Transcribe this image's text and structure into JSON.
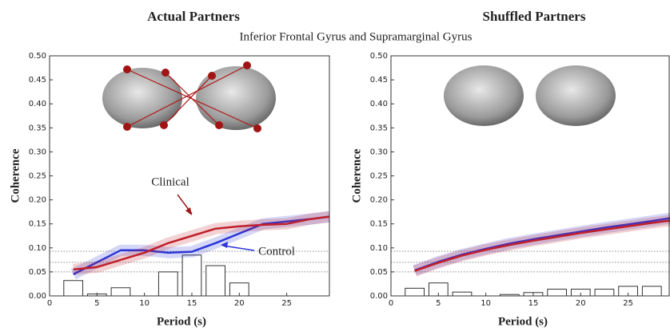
{
  "subtitle": "Inferior Frontal Gyrus and Supramarginal Gyrus",
  "chart_data": [
    {
      "type": "line",
      "title": "Actual Partners",
      "xlabel": "Period (s)",
      "ylabel": "Coherence",
      "x": [
        2.5,
        5,
        7.5,
        10,
        12.5,
        15,
        17.5,
        20,
        22.5,
        25,
        27.5,
        29.5
      ],
      "series": [
        {
          "name": "Control",
          "color": "#2b35d8",
          "values": [
            0.045,
            0.07,
            0.095,
            0.095,
            0.09,
            0.092,
            0.11,
            0.13,
            0.15,
            0.155,
            0.16,
            0.165
          ]
        },
        {
          "name": "Clinical",
          "color": "#c0202a",
          "values": [
            0.055,
            0.06,
            0.075,
            0.09,
            0.11,
            0.125,
            0.14,
            0.145,
            0.148,
            0.15,
            0.16,
            0.165
          ]
        }
      ],
      "bars": {
        "x": [
          2.5,
          5,
          7.5,
          12.5,
          15,
          17.5,
          20
        ],
        "values": [
          0.032,
          0.004,
          0.017,
          0.05,
          0.085,
          0.063,
          0.027
        ]
      },
      "reference_lines": [
        0.093,
        0.07,
        0.05
      ],
      "xlim": [
        0,
        29.5
      ],
      "ylim": [
        0,
        0.5
      ],
      "xticks": [
        0,
        5,
        10,
        15,
        20,
        25
      ],
      "yticks": [
        {
          "value": 0,
          "label": "0.00"
        },
        {
          "value": 0.05,
          "label": "0.05"
        },
        {
          "value": 0.1,
          "label": "0.10"
        },
        {
          "value": 0.15,
          "label": "0.15"
        },
        {
          "value": 0.2,
          "label": "0.20"
        },
        {
          "value": 0.25,
          "label": "0.25"
        },
        {
          "value": 0.3,
          "label": "0.30"
        },
        {
          "value": 0.35,
          "label": "0.35"
        },
        {
          "value": 0.4,
          "label": "0.40"
        },
        {
          "value": 0.45,
          "label": "0.45"
        },
        {
          "value": 0.5,
          "label": "0.50"
        }
      ]
    },
    {
      "type": "line",
      "title": "Shuffled Partners",
      "xlabel": "Period (s)",
      "ylabel": "Coherence",
      "x": [
        2.5,
        5,
        7.5,
        10,
        12.5,
        15,
        17.5,
        20,
        22.5,
        25,
        27.5,
        29.5
      ],
      "series": [
        {
          "color": "#2b35d8",
          "values": [
            0.053,
            0.071,
            0.086,
            0.098,
            0.109,
            0.118,
            0.126,
            0.134,
            0.142,
            0.149,
            0.156,
            0.162
          ]
        },
        {
          "color": "#c0202a",
          "values": [
            0.052,
            0.069,
            0.084,
            0.096,
            0.106,
            0.115,
            0.123,
            0.131,
            0.138,
            0.145,
            0.152,
            0.157
          ]
        }
      ],
      "bars": {
        "x": [
          2.5,
          5,
          7.5,
          12.5,
          15,
          17.5,
          20,
          22.5,
          25,
          27.5
        ],
        "values": [
          0.016,
          0.027,
          0.008,
          0.003,
          0.007,
          0.014,
          0.014,
          0.014,
          0.02,
          0.02
        ]
      },
      "reference_lines": [
        0.093,
        0.07,
        0.05
      ],
      "xlim": [
        0,
        29.5
      ],
      "ylim": [
        0,
        0.5
      ],
      "xticks": [
        0,
        5,
        10,
        15,
        20,
        25
      ],
      "yticks": [
        {
          "value": 0,
          "label": "0.00"
        },
        {
          "value": 0.05,
          "label": "0.05"
        },
        {
          "value": 0.1,
          "label": "0.10"
        },
        {
          "value": 0.15,
          "label": "0.15"
        },
        {
          "value": 0.2,
          "label": "0.20"
        },
        {
          "value": 0.25,
          "label": "0.25"
        },
        {
          "value": 0.3,
          "label": "0.30"
        },
        {
          "value": 0.35,
          "label": "0.35"
        },
        {
          "value": 0.4,
          "label": "0.40"
        },
        {
          "value": 0.45,
          "label": "0.45"
        },
        {
          "value": 0.5,
          "label": "0.50"
        }
      ]
    }
  ]
}
